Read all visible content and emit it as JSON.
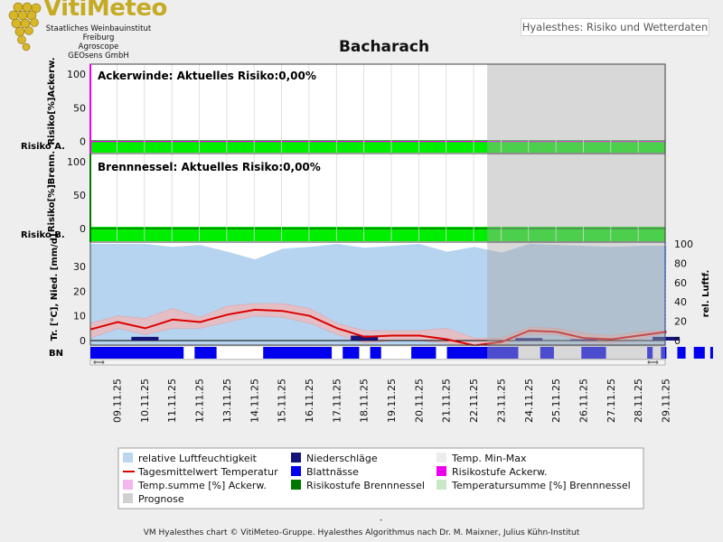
{
  "logo": {
    "title": "VitiMeteo",
    "line1": "Staatliches Weinbauinstitut Freiburg",
    "line2": "Agroscope",
    "line3": "GEOsens GmbH"
  },
  "header": {
    "badge": "Hyalesthes: Risiko und Wetterdaten"
  },
  "footer": {
    "dash": "-",
    "credit": "VM Hyalesthes chart © VitiMeteo-Gruppe. Hyalesthes Algorithmus nach Dr. M. Maixner, Julius Kühn-Institut"
  },
  "colors": {
    "risk_green": "#00ee00",
    "prognose_gray": "#cccccc",
    "temp_red": "#dd0000",
    "minmax_pink": "#f2b8b8",
    "humidity_blue": "#9ec6ea",
    "precip_navy": "#14147a",
    "wetness_blue": "#0000ee",
    "ackerw_magenta": "#ee00ee",
    "brenn_green": "#007700"
  },
  "chart_data": {
    "type": "line",
    "title": "Bacharach",
    "dates": [
      "09.11.25",
      "10.11.25",
      "11.11.25",
      "12.11.25",
      "13.11.25",
      "14.11.25",
      "15.11.25",
      "16.11.25",
      "17.11.25",
      "18.11.25",
      "19.11.25",
      "20.11.25",
      "21.11.25",
      "22.11.25",
      "23.11.25",
      "24.11.25",
      "25.11.25",
      "26.11.25",
      "27.11.25",
      "28.11.25",
      "29.11.25"
    ],
    "prognose_from": "22.11.25",
    "panels": {
      "ackerwinde": {
        "label": "Ackerwinde: Aktuelles Risiko:0,00%",
        "ylabel": "Risiko[%]Ackerw.",
        "row_label": "Risiko A.",
        "yticks": [
          "100",
          "50",
          "0"
        ],
        "current_risk_percent": 0
      },
      "brennnessel": {
        "label": "Brennnessel: Aktuelles Risiko:0,00%",
        "ylabel": "Risiko[%]Brenn.",
        "row_label": "Risiko B.",
        "yticks": [
          "100",
          "50",
          "0"
        ],
        "current_risk_percent": 0
      },
      "weather": {
        "ylabel_left": "Tr. [°C], Nied. [mm/d]",
        "ylabel_right": "rel. Luftf.",
        "row_label": "BN",
        "yticks_left": [
          "30",
          "20",
          "10",
          "0"
        ],
        "yticks_right": [
          "100",
          "80",
          "60",
          "40",
          "20",
          "0"
        ],
        "ylim_left": [
          -3.5,
          40
        ],
        "ylim_right": [
          -10,
          100
        ],
        "temp_mean": [
          4.5,
          7.5,
          5,
          8.5,
          7.5,
          10.5,
          12.5,
          12,
          10,
          5,
          1.5,
          2,
          2,
          0.5,
          -2,
          -0.5,
          4,
          3.5,
          1,
          0.5,
          2,
          3.5
        ],
        "temp_max": [
          7,
          10,
          9,
          13,
          9.5,
          14,
          15,
          15,
          13,
          7,
          4,
          4,
          4,
          5,
          1,
          1,
          5.5,
          5,
          3,
          2,
          3.5,
          4
        ],
        "temp_min": [
          1,
          5,
          2.5,
          5,
          5,
          7.5,
          10,
          9.5,
          7,
          2.5,
          -1,
          0,
          0,
          -1,
          -3.5,
          -2,
          2.5,
          2.5,
          -0.5,
          -1,
          0.5,
          3
        ],
        "humidity": [
          100,
          100,
          100,
          97,
          99,
          92,
          84,
          95,
          97,
          100,
          96,
          98,
          100,
          92,
          97,
          91,
          100,
          99,
          98,
          97,
          98,
          98
        ],
        "precip": [
          0,
          1.5,
          0,
          0,
          0,
          0,
          0,
          0,
          0,
          2,
          0,
          0,
          0,
          0,
          0,
          1,
          0,
          0.5,
          0,
          0,
          1.5,
          0
        ],
        "leaf_wetness": [
          [
            0,
            3.4
          ],
          [
            3.8,
            4.6
          ],
          [
            6.3,
            8.8
          ],
          [
            9.2,
            9.8
          ],
          [
            10.2,
            10.6
          ],
          [
            11.7,
            12.6
          ],
          [
            13.0,
            15.6
          ],
          [
            16.4,
            16.9
          ],
          [
            17.9,
            18.8
          ],
          [
            20.3,
            20.5
          ],
          [
            20.8,
            21.0
          ],
          [
            21.4,
            21.7
          ],
          [
            22.0,
            22.4
          ],
          [
            22.6,
            22.7
          ],
          [
            23.1,
            23.4
          ],
          [
            23.7,
            23.9
          ],
          [
            24.0,
            24.1
          ],
          [
            25.1,
            25.4
          ],
          [
            25.9,
            26.2
          ],
          [
            26.6,
            27.3
          ],
          [
            27.6,
            27.8
          ],
          [
            28.4,
            28.7
          ],
          [
            28.9,
            29.0
          ]
        ]
      }
    },
    "legend": [
      "relative Luftfeuchtigkeit",
      "Niederschläge",
      "Temp. Min-Max",
      "Tagesmittelwert Temperatur",
      "Blattnässe",
      "Risikostufe Ackerw.",
      "Temp.summe [%] Ackerw.",
      "Risikostufe Brennnessel",
      "Temperatursumme [%] Brennnessel",
      "Prognose"
    ]
  }
}
